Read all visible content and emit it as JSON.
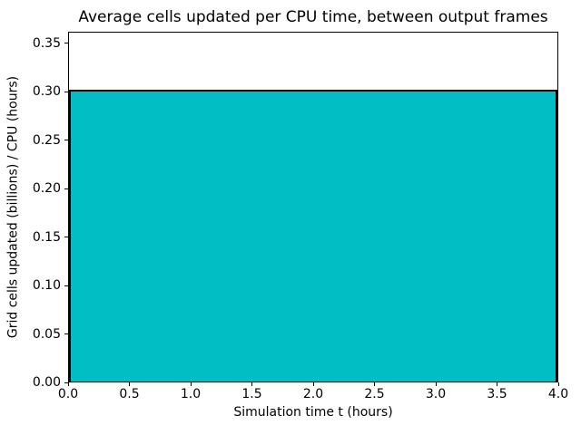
{
  "chart_data": {
    "type": "area",
    "title": "Average cells updated per CPU time, between output frames",
    "xlabel": "Simulation time t (hours)",
    "ylabel": "Grid cells updated (billions) / CPU (hours)",
    "x": [
      0.0,
      4.0
    ],
    "y": [
      0.3,
      0.3
    ],
    "xlim": [
      0.0,
      4.0
    ],
    "ylim": [
      0.0,
      0.362
    ],
    "xticks": [
      0.0,
      0.5,
      1.0,
      1.5,
      2.0,
      2.5,
      3.0,
      3.5,
      4.0
    ],
    "xtick_labels": [
      "0.0",
      "0.5",
      "1.0",
      "1.5",
      "2.0",
      "2.5",
      "3.0",
      "3.5",
      "4.0"
    ],
    "yticks": [
      0.0,
      0.05,
      0.1,
      0.15,
      0.2,
      0.25,
      0.3,
      0.35
    ],
    "ytick_labels": [
      "0.00",
      "0.05",
      "0.10",
      "0.15",
      "0.20",
      "0.25",
      "0.30",
      "0.35"
    ],
    "grid": false,
    "legend_visible": false,
    "colors": {
      "fill": "#00BEC4",
      "line": "#000000",
      "text": "#000000",
      "background": "#FFFFFF"
    }
  }
}
